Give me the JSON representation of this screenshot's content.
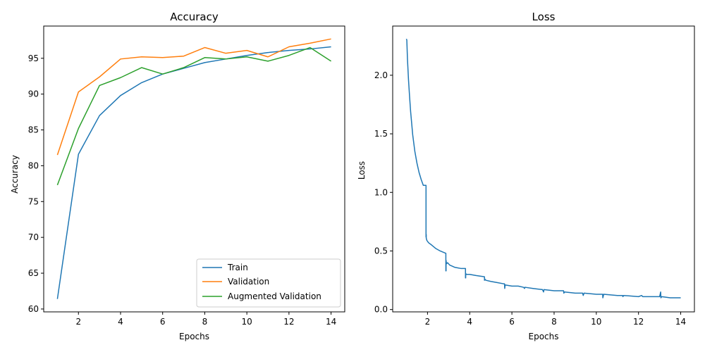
{
  "chart_data": [
    {
      "type": "line",
      "title": "Accuracy",
      "xlabel": "Epochs",
      "ylabel": "Accuracy",
      "xlim": [
        0.35,
        14.65
      ],
      "ylim": [
        59.6,
        99.5
      ],
      "xticks": [
        2,
        4,
        6,
        8,
        10,
        12,
        14
      ],
      "yticks": [
        60,
        65,
        70,
        75,
        80,
        85,
        90,
        95
      ],
      "grid": false,
      "legend": "lower-right",
      "x": [
        1,
        2,
        3,
        4,
        5,
        6,
        7,
        8,
        9,
        10,
        11,
        12,
        13,
        14
      ],
      "series": [
        {
          "name": "Train",
          "color": "#1f77b4",
          "values": [
            61.4,
            81.6,
            87.0,
            89.8,
            91.6,
            92.8,
            93.6,
            94.4,
            94.9,
            95.4,
            95.8,
            96.1,
            96.3,
            96.6
          ]
        },
        {
          "name": "Validation",
          "color": "#ff7f0e",
          "values": [
            81.5,
            90.3,
            92.4,
            94.9,
            95.2,
            95.1,
            95.3,
            96.5,
            95.7,
            96.1,
            95.2,
            96.6,
            97.1,
            97.7
          ]
        },
        {
          "name": "Augmented Validation",
          "color": "#2ca02c",
          "values": [
            77.3,
            85.2,
            91.2,
            92.3,
            93.7,
            92.8,
            93.7,
            95.1,
            94.9,
            95.2,
            94.6,
            95.4,
            96.5,
            94.6
          ]
        }
      ]
    },
    {
      "type": "line",
      "title": "Loss",
      "xlabel": "Epochs",
      "ylabel": "Loss",
      "xlim": [
        0.35,
        14.65
      ],
      "ylim": [
        -0.02,
        2.42
      ],
      "xticks": [
        2,
        4,
        6,
        8,
        10,
        12,
        14
      ],
      "yticks": [
        0.0,
        0.5,
        1.0,
        1.5,
        2.0
      ],
      "ytick_labels": [
        "0.0",
        "0.5",
        "1.0",
        "1.5",
        "2.0"
      ],
      "grid": false,
      "series": [
        {
          "color": "#1f77b4",
          "x": [
            1.0,
            1.02,
            1.05,
            1.1,
            1.15,
            1.2,
            1.3,
            1.4,
            1.5,
            1.6,
            1.7,
            1.8,
            1.9,
            1.93,
            1.93,
            1.94,
            1.94,
            1.97,
            2.05,
            2.2,
            2.4,
            2.6,
            2.87,
            2.87,
            2.88,
            2.88,
            2.9,
            2.95,
            3.05,
            3.3,
            3.6,
            3.8,
            3.8,
            3.81,
            3.81,
            3.83,
            4.0,
            4.3,
            4.7,
            4.7,
            4.72,
            4.76,
            5.0,
            5.3,
            5.6,
            5.65,
            5.66,
            5.68,
            6.0,
            6.3,
            6.55,
            6.6,
            6.62,
            7.0,
            7.45,
            7.5,
            7.52,
            8.0,
            8.45,
            8.46,
            8.5,
            9.0,
            9.35,
            9.38,
            9.42,
            10.0,
            10.3,
            10.31,
            10.35,
            11.0,
            11.25,
            11.26,
            11.3,
            12.0,
            12.15,
            12.2,
            13.0,
            13.05,
            13.06,
            13.1,
            13.5,
            14.0
          ],
          "y": [
            2.31,
            2.3,
            2.14,
            1.96,
            1.82,
            1.69,
            1.49,
            1.35,
            1.25,
            1.17,
            1.11,
            1.06,
            1.06,
            1.06,
            0.62,
            0.64,
            0.61,
            0.59,
            0.57,
            0.55,
            0.52,
            0.5,
            0.48,
            0.33,
            0.33,
            0.42,
            0.39,
            0.4,
            0.38,
            0.36,
            0.35,
            0.35,
            0.27,
            0.27,
            0.31,
            0.3,
            0.3,
            0.29,
            0.28,
            0.25,
            0.26,
            0.25,
            0.24,
            0.23,
            0.22,
            0.22,
            0.18,
            0.21,
            0.2,
            0.2,
            0.19,
            0.18,
            0.19,
            0.18,
            0.17,
            0.15,
            0.17,
            0.16,
            0.16,
            0.14,
            0.15,
            0.14,
            0.14,
            0.12,
            0.14,
            0.13,
            0.13,
            0.1,
            0.13,
            0.12,
            0.12,
            0.11,
            0.12,
            0.11,
            0.12,
            0.11,
            0.11,
            0.15,
            0.1,
            0.11,
            0.1,
            0.1
          ]
        }
      ]
    }
  ]
}
